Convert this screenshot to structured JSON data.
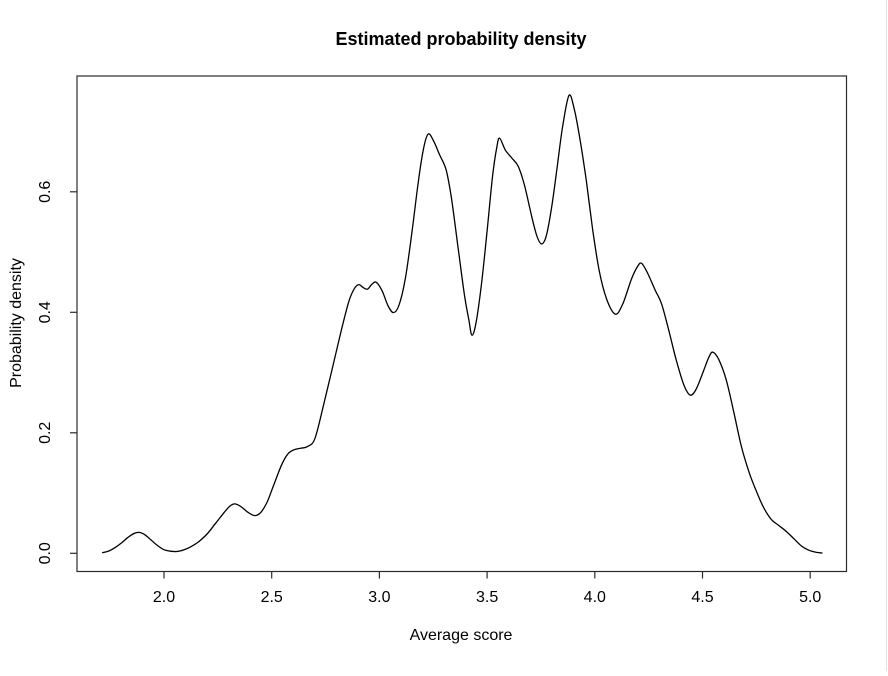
{
  "page": {
    "background": "#ffffff"
  },
  "chart_data": {
    "type": "line",
    "title": "Estimated probability density",
    "xlabel": "Average score",
    "ylabel": "Probability density",
    "x_ticks": [
      2.0,
      2.5,
      3.0,
      3.5,
      4.0,
      4.5,
      5.0
    ],
    "x_tick_labels": [
      "2.0",
      "2.5",
      "3.0",
      "3.5",
      "4.0",
      "4.5",
      "5.0"
    ],
    "y_ticks": [
      0.0,
      0.2,
      0.4,
      0.6
    ],
    "y_tick_labels": [
      "0.0",
      "0.2",
      "0.4",
      "0.6"
    ],
    "xlim": [
      1.6,
      5.19
    ],
    "ylim": [
      -0.03,
      0.79
    ],
    "grid": false,
    "legend": null,
    "curve_color": "#000000",
    "axis_color": "#2b2b2b",
    "text_color": "#000000",
    "series": [
      {
        "name": "density",
        "points": [
          [
            1.715,
            0.001
          ],
          [
            1.745,
            0.004
          ],
          [
            1.775,
            0.01
          ],
          [
            1.805,
            0.018
          ],
          [
            1.835,
            0.027
          ],
          [
            1.862,
            0.033
          ],
          [
            1.885,
            0.0347
          ],
          [
            1.91,
            0.031
          ],
          [
            1.94,
            0.022
          ],
          [
            1.97,
            0.013
          ],
          [
            2.0,
            0.006
          ],
          [
            2.03,
            0.0035
          ],
          [
            2.06,
            0.003
          ],
          [
            2.09,
            0.0055
          ],
          [
            2.12,
            0.01
          ],
          [
            2.16,
            0.019
          ],
          [
            2.2,
            0.032
          ],
          [
            2.24,
            0.05
          ],
          [
            2.28,
            0.068
          ],
          [
            2.305,
            0.078
          ],
          [
            2.328,
            0.082
          ],
          [
            2.355,
            0.078
          ],
          [
            2.39,
            0.068
          ],
          [
            2.422,
            0.0625
          ],
          [
            2.45,
            0.068
          ],
          [
            2.48,
            0.086
          ],
          [
            2.51,
            0.114
          ],
          [
            2.545,
            0.146
          ],
          [
            2.575,
            0.165
          ],
          [
            2.605,
            0.172
          ],
          [
            2.635,
            0.1745
          ],
          [
            2.665,
            0.177
          ],
          [
            2.7,
            0.19
          ],
          [
            2.74,
            0.245
          ],
          [
            2.77,
            0.29
          ],
          [
            2.8,
            0.335
          ],
          [
            2.83,
            0.38
          ],
          [
            2.86,
            0.42
          ],
          [
            2.885,
            0.44
          ],
          [
            2.905,
            0.446
          ],
          [
            2.925,
            0.441
          ],
          [
            2.945,
            0.4385
          ],
          [
            2.965,
            0.4465
          ],
          [
            2.985,
            0.45
          ],
          [
            3.012,
            0.436
          ],
          [
            3.04,
            0.411
          ],
          [
            3.065,
            0.3995
          ],
          [
            3.09,
            0.411
          ],
          [
            3.12,
            0.455
          ],
          [
            3.15,
            0.53
          ],
          [
            3.18,
            0.615
          ],
          [
            3.205,
            0.672
          ],
          [
            3.227,
            0.696
          ],
          [
            3.252,
            0.684
          ],
          [
            3.28,
            0.661
          ],
          [
            3.31,
            0.636
          ],
          [
            3.335,
            0.588
          ],
          [
            3.365,
            0.508
          ],
          [
            3.395,
            0.428
          ],
          [
            3.415,
            0.388
          ],
          [
            3.43,
            0.362
          ],
          [
            3.45,
            0.385
          ],
          [
            3.475,
            0.45
          ],
          [
            3.5,
            0.535
          ],
          [
            3.525,
            0.625
          ],
          [
            3.545,
            0.674
          ],
          [
            3.558,
            0.689
          ],
          [
            3.585,
            0.669
          ],
          [
            3.615,
            0.656
          ],
          [
            3.645,
            0.642
          ],
          [
            3.675,
            0.609
          ],
          [
            3.705,
            0.562
          ],
          [
            3.73,
            0.528
          ],
          [
            3.752,
            0.5135
          ],
          [
            3.775,
            0.527
          ],
          [
            3.8,
            0.575
          ],
          [
            3.825,
            0.64
          ],
          [
            3.85,
            0.707
          ],
          [
            3.88,
            0.76
          ],
          [
            3.905,
            0.737
          ],
          [
            3.93,
            0.69
          ],
          [
            3.96,
            0.62
          ],
          [
            3.99,
            0.538
          ],
          [
            4.02,
            0.47
          ],
          [
            4.055,
            0.422
          ],
          [
            4.095,
            0.397
          ],
          [
            4.13,
            0.414
          ],
          [
            4.17,
            0.455
          ],
          [
            4.2,
            0.477
          ],
          [
            4.218,
            0.481
          ],
          [
            4.245,
            0.465
          ],
          [
            4.28,
            0.437
          ],
          [
            4.31,
            0.414
          ],
          [
            4.345,
            0.368
          ],
          [
            4.38,
            0.318
          ],
          [
            4.415,
            0.278
          ],
          [
            4.443,
            0.2625
          ],
          [
            4.47,
            0.272
          ],
          [
            4.505,
            0.303
          ],
          [
            4.53,
            0.326
          ],
          [
            4.548,
            0.334
          ],
          [
            4.575,
            0.322
          ],
          [
            4.61,
            0.288
          ],
          [
            4.645,
            0.235
          ],
          [
            4.68,
            0.178
          ],
          [
            4.715,
            0.136
          ],
          [
            4.75,
            0.103
          ],
          [
            4.785,
            0.075
          ],
          [
            4.82,
            0.056
          ],
          [
            4.855,
            0.046
          ],
          [
            4.89,
            0.036
          ],
          [
            4.925,
            0.024
          ],
          [
            4.96,
            0.012
          ],
          [
            4.995,
            0.005
          ],
          [
            5.03,
            0.0015
          ],
          [
            5.055,
            0.0005
          ]
        ]
      }
    ]
  }
}
